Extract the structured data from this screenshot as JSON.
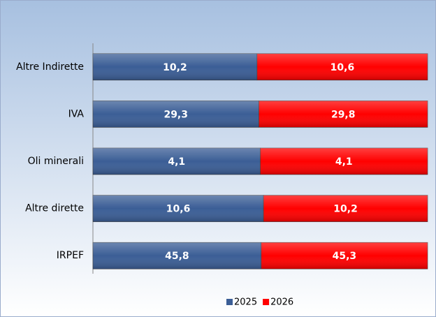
{
  "chart_data": {
    "type": "bar",
    "orientation": "horizontal",
    "stacking": "percent",
    "categories": [
      "Altre Indirette",
      "IVA",
      "Oli minerali",
      "Altre dirette",
      "IRPEF"
    ],
    "series": [
      {
        "name": "2025",
        "color": "#3b5e96",
        "values": [
          10.2,
          29.3,
          4.1,
          10.6,
          45.8
        ],
        "value_labels": [
          "10,2",
          "29,3",
          "4,1",
          "10,6",
          "45,8"
        ]
      },
      {
        "name": "2026",
        "color": "#ff0000",
        "values": [
          10.6,
          29.8,
          4.1,
          10.2,
          45.3
        ],
        "value_labels": [
          "10,6",
          "29,8",
          "4,1",
          "10,2",
          "45,3"
        ]
      }
    ],
    "legend": "bottom"
  }
}
